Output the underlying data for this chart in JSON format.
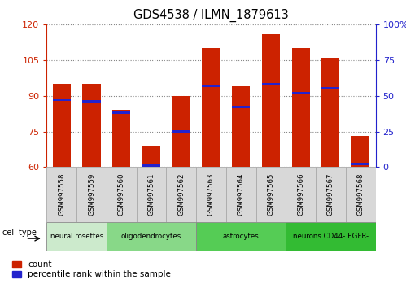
{
  "title": "GDS4538 / ILMN_1879613",
  "samples": [
    "GSM997558",
    "GSM997559",
    "GSM997560",
    "GSM997561",
    "GSM997562",
    "GSM997563",
    "GSM997564",
    "GSM997565",
    "GSM997566",
    "GSM997567",
    "GSM997568"
  ],
  "count_values": [
    95,
    95,
    84,
    69,
    90,
    110,
    94,
    116,
    110,
    106,
    73
  ],
  "percentile_right": [
    47,
    46,
    38,
    1,
    25,
    57,
    42,
    58,
    52,
    55,
    2
  ],
  "ylim_left": [
    60,
    120
  ],
  "ylim_right": [
    0,
    100
  ],
  "yticks_left": [
    60,
    75,
    90,
    105,
    120
  ],
  "yticks_right": [
    0,
    25,
    50,
    75,
    100
  ],
  "cell_types": [
    {
      "label": "neural rosettes",
      "start": 0,
      "end": 2,
      "color": "#c8f0c8"
    },
    {
      "label": "oligodendrocytes",
      "start": 2,
      "end": 5,
      "color": "#90e090"
    },
    {
      "label": "astrocytes",
      "start": 5,
      "end": 8,
      "color": "#60cc60"
    },
    {
      "label": "neurons CD44- EGFR-",
      "start": 8,
      "end": 11,
      "color": "#40b840"
    }
  ],
  "bar_color": "#cc2200",
  "percentile_color": "#2222cc",
  "bar_width": 0.6,
  "legend_labels": [
    "count",
    "percentile rank within the sample"
  ],
  "cell_type_label": "cell type",
  "grid_color": "#888888",
  "tick_color_left": "#cc2200",
  "tick_color_right": "#2222cc",
  "sample_box_color": "#d8d8d8",
  "sample_box_edge": "#aaaaaa"
}
